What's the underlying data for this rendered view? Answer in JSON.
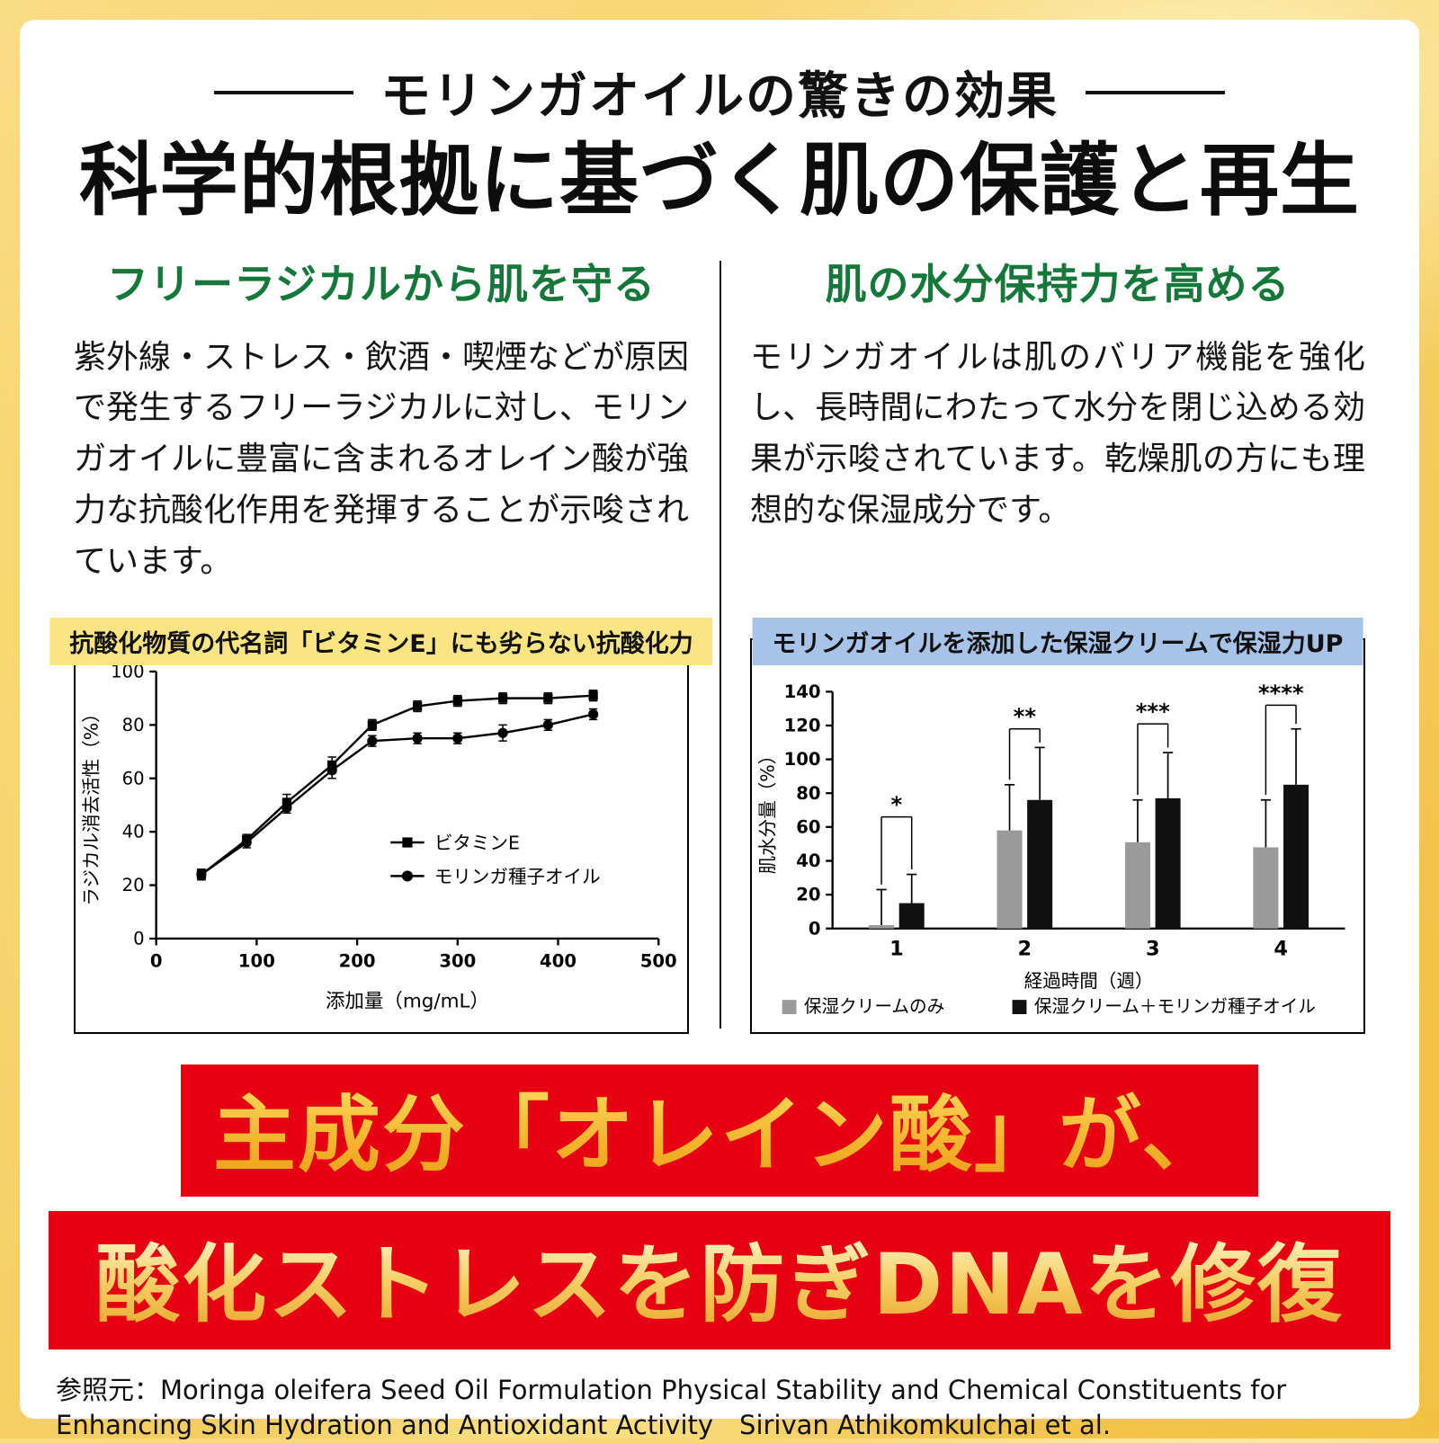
{
  "page": {
    "kicker": "モリンガオイルの驚きの効果",
    "headline": "科学的根拠に基づく肌の保護と再生"
  },
  "left_section": {
    "heading": "フリーラジカルから肌を守る",
    "body": "紫外線・ストレス・飲酒・喫煙などが原因で発生するフリーラジカルに対し、モリンガオイルに豊富に含まれるオレイン酸が強力な抗酸化作用を発揮することが示唆されています。"
  },
  "right_section": {
    "heading": "肌の水分保持力を高める",
    "body": "モリンガオイルは肌のバリア機能を強化し、長時間にわたって水分を閉じ込める効果が示唆されています。乾燥肌の方にも理想的な保湿成分です。"
  },
  "banner": {
    "line1": "主成分「オレイン酸」が、",
    "line2": "酸化ストレスを防ぎDNAを修復"
  },
  "footer": {
    "reference": "参照元：Moringa oleifera Seed Oil Formulation Physical Stability and Chemical Constituents for Enhancing Skin Hydration and Antioxidant Activity　Sirivan Athikomkulchai et al."
  },
  "colors": {
    "accent_green": "#15773a",
    "banner_red": "#e60012",
    "band_yellow": "#fbe482",
    "band_blue": "#a8c3e8",
    "gold": "#f3b62e",
    "gray_bar": "#9a9a9a",
    "black_bar": "#111111"
  },
  "chart_data": [
    {
      "type": "line",
      "title": "抗酸化物質の代名詞「ビタミンE」にも劣らない抗酸化力",
      "xlabel": "添加量（mg/mL）",
      "ylabel": "ラジカル消去活性（%）",
      "xlim": [
        0,
        500
      ],
      "ylim": [
        0,
        100
      ],
      "xticks": [
        0,
        100,
        200,
        300,
        400,
        500
      ],
      "yticks": [
        0,
        20,
        40,
        60,
        80,
        100
      ],
      "grid": false,
      "legend_position": "inside-right",
      "series": [
        {
          "name": "ビタミンE",
          "marker": "square",
          "x": [
            45,
            90,
            130,
            175,
            215,
            260,
            300,
            345,
            390,
            435
          ],
          "y": [
            24,
            37,
            51,
            65,
            80,
            87,
            89,
            90,
            90,
            91
          ],
          "err": [
            2,
            2,
            3,
            3,
            2,
            2,
            2,
            2,
            2,
            2
          ]
        },
        {
          "name": "モリンガ種子オイル",
          "marker": "circle",
          "x": [
            45,
            90,
            130,
            175,
            215,
            260,
            300,
            345,
            390,
            435
          ],
          "y": [
            24,
            36,
            49,
            63,
            74,
            75,
            75,
            77,
            80,
            84
          ],
          "err": [
            2,
            2,
            2,
            3,
            2,
            2,
            2,
            3,
            2,
            2
          ]
        }
      ]
    },
    {
      "type": "bar",
      "title": "モリンガオイルを添加した保湿クリームで保湿力UP",
      "xlabel": "経過時間（週）",
      "ylabel": "肌水分量（%）",
      "ylim": [
        0,
        140
      ],
      "yticks": [
        0,
        20,
        40,
        60,
        80,
        100,
        120,
        140
      ],
      "grid": false,
      "legend_position": "bottom",
      "categories": [
        "1",
        "2",
        "3",
        "4"
      ],
      "series": [
        {
          "name": "保湿クリームのみ",
          "color": "#9a9a9a",
          "values": [
            2,
            58,
            51,
            48
          ],
          "errors": [
            21,
            27,
            25,
            28
          ]
        },
        {
          "name": "保湿クリーム＋モリンガ種子オイル",
          "color": "#111111",
          "values": [
            15,
            76,
            77,
            85
          ],
          "errors": [
            17,
            31,
            27,
            33
          ]
        }
      ],
      "significance": [
        "*",
        "**",
        "***",
        "****"
      ],
      "significance_heights": [
        66,
        118,
        121,
        132
      ]
    }
  ]
}
